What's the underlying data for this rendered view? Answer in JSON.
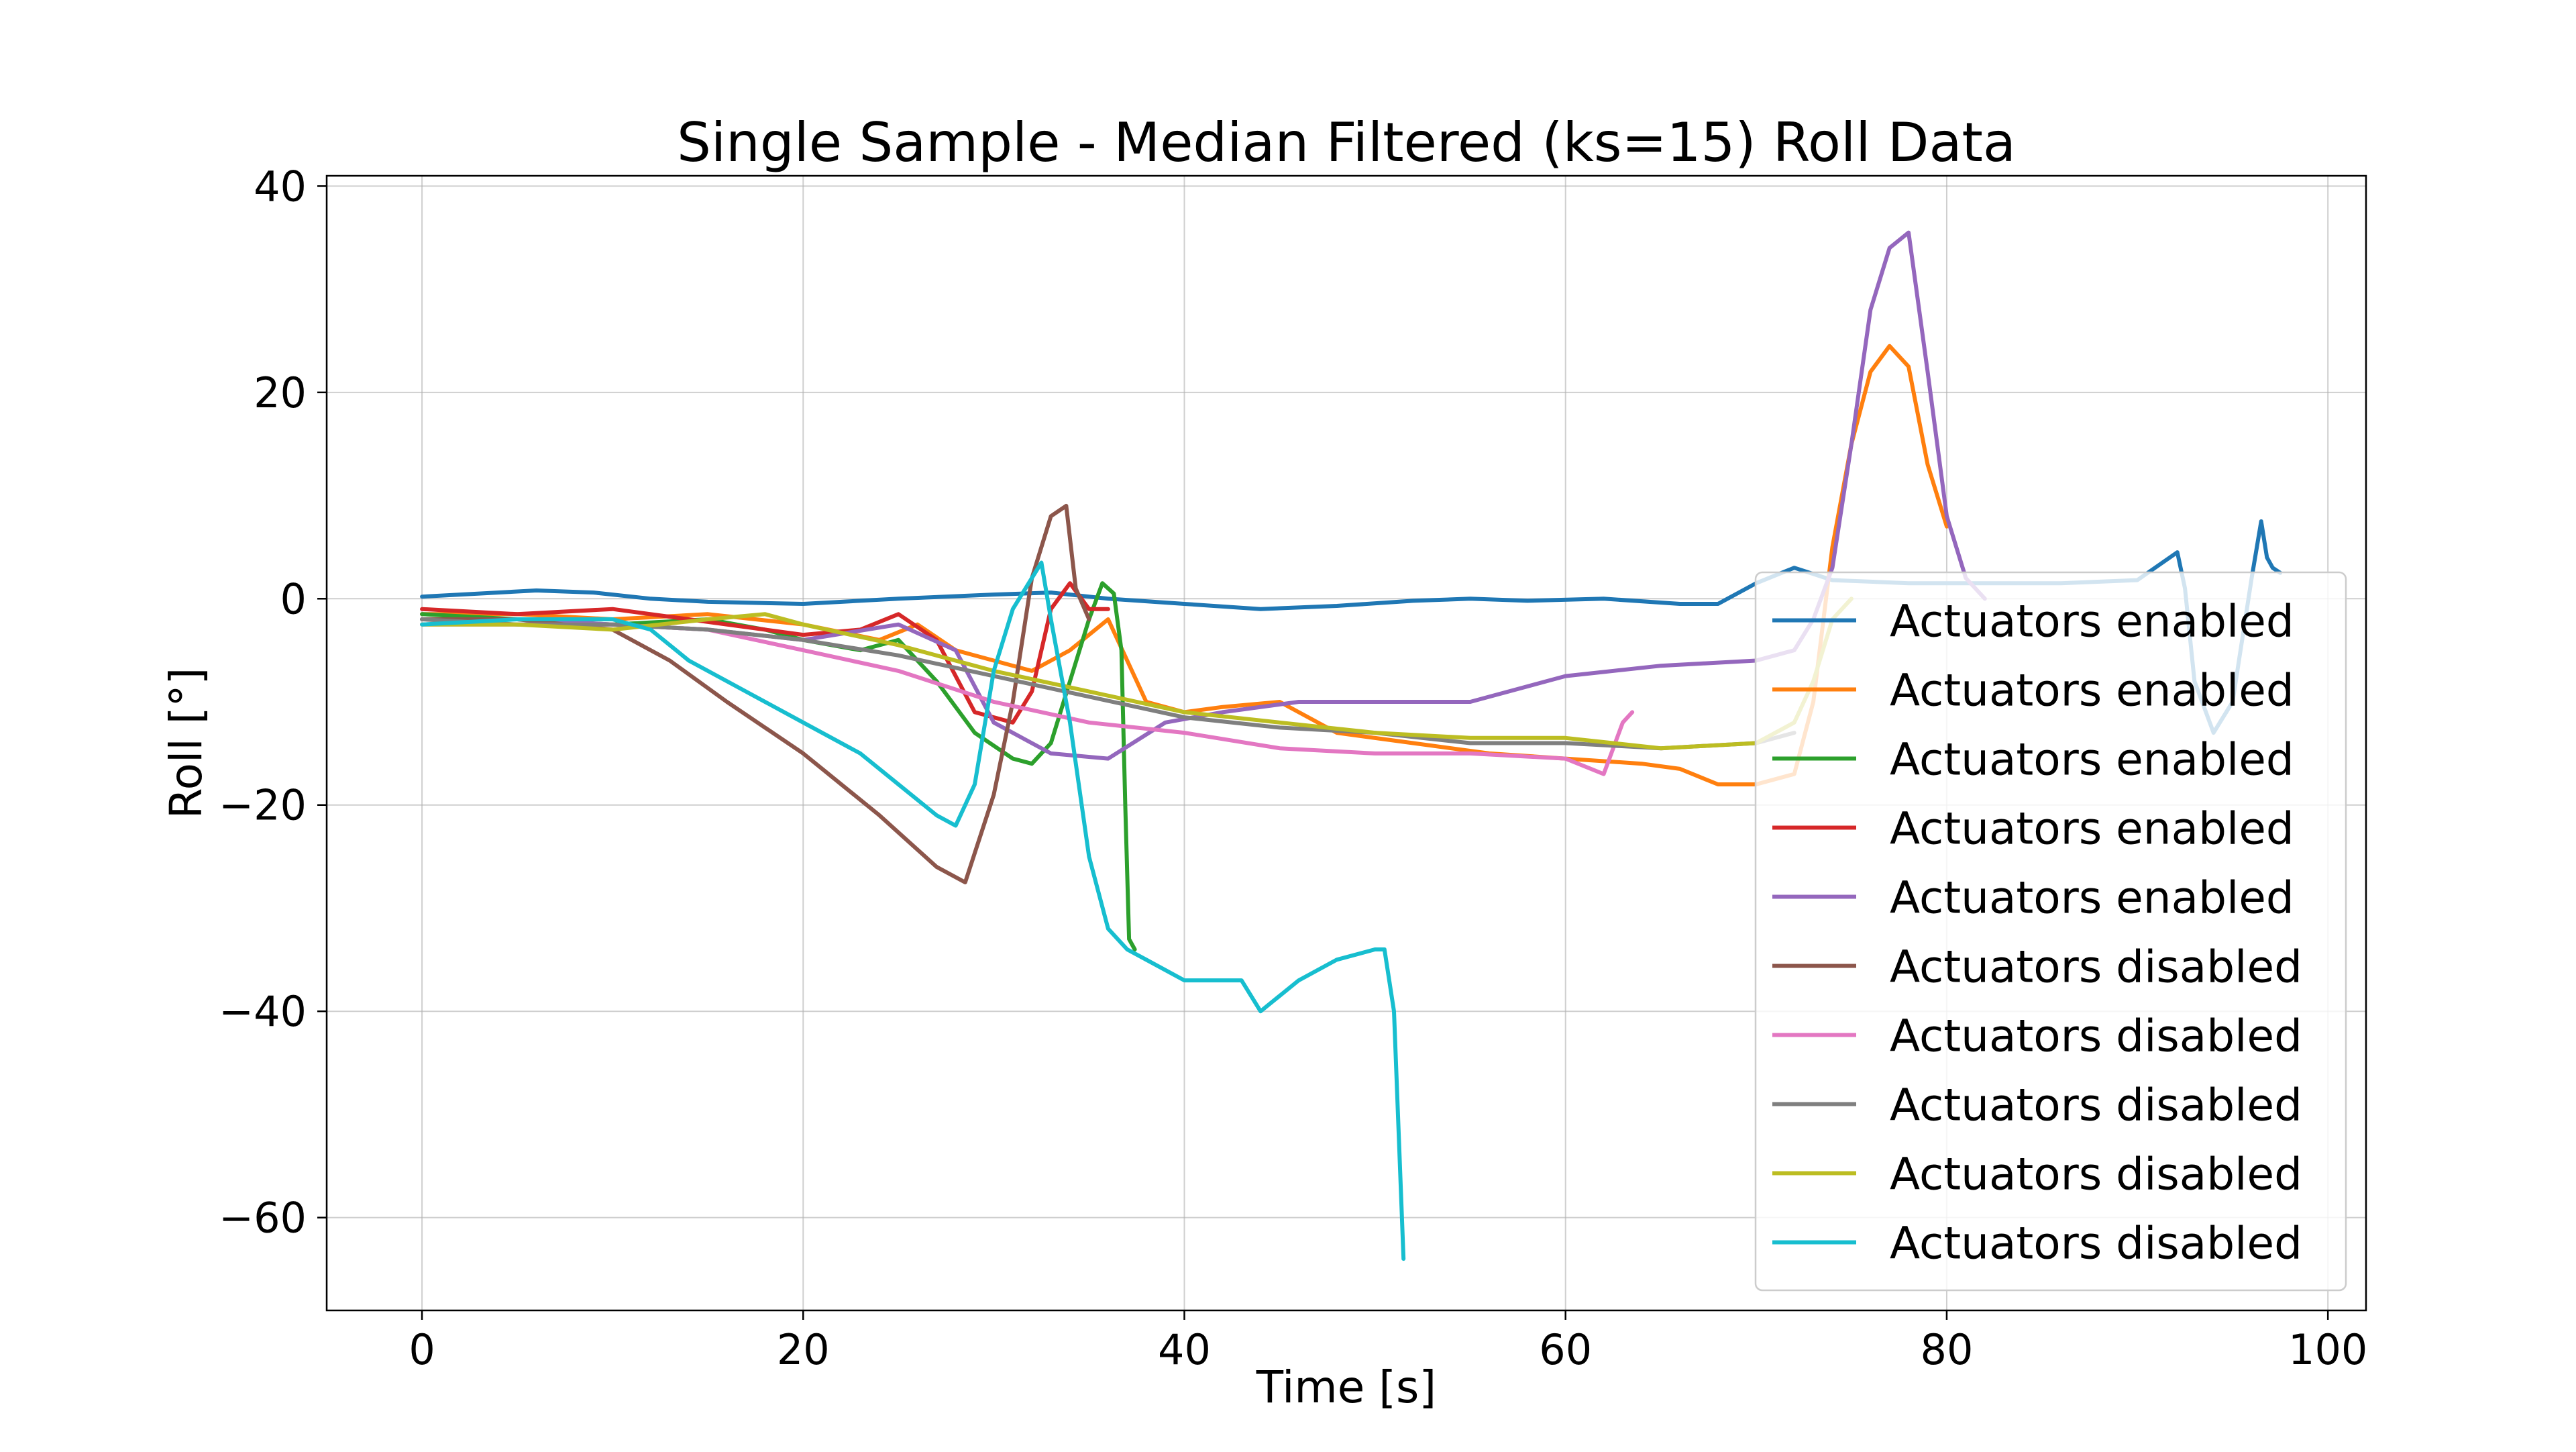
{
  "chart_data": {
    "type": "line",
    "title": "Single Sample - Median Filtered (ks=15) Roll Data",
    "xlabel": "Time [s]",
    "ylabel": "Roll [°]",
    "xlim": [
      -5,
      102
    ],
    "ylim": [
      -69,
      41
    ],
    "xticks": [
      0,
      20,
      40,
      60,
      80,
      100
    ],
    "xtick_labels": [
      "0",
      "20",
      "40",
      "60",
      "80",
      "100"
    ],
    "yticks": [
      40,
      20,
      0,
      -20,
      -40,
      -60
    ],
    "ytick_labels": [
      "40",
      "20",
      "0",
      "−20",
      "−40",
      "−60"
    ],
    "grid": true,
    "legend_position": "lower-right",
    "series": [
      {
        "name": "Actuators enabled",
        "color": "#1f77b4",
        "x": [
          0,
          3,
          6,
          9,
          12,
          15,
          20,
          25,
          30,
          33,
          36,
          40,
          44,
          48,
          52,
          55,
          58,
          62,
          66,
          68,
          70,
          72,
          74,
          78,
          82,
          86,
          90,
          92.1,
          92.5,
          93,
          94,
          95,
          96,
          96.5,
          96.8,
          97.1,
          97.5
        ],
        "y": [
          0.2,
          0.5,
          0.8,
          0.6,
          0.0,
          -0.3,
          -0.5,
          0.0,
          0.4,
          0.6,
          0.0,
          -0.5,
          -1.0,
          -0.7,
          -0.2,
          0.0,
          -0.2,
          0.0,
          -0.5,
          -0.5,
          1.5,
          3.0,
          1.8,
          1.5,
          1.5,
          1.5,
          1.8,
          4.5,
          1.0,
          -8.0,
          -13.0,
          -10.0,
          2.0,
          7.5,
          4.0,
          3.0,
          2.5
        ]
      },
      {
        "name": "Actuators enabled",
        "color": "#ff7f0e",
        "x": [
          0,
          5,
          10,
          15,
          20,
          24,
          26,
          28,
          30,
          32,
          34,
          36,
          38,
          40,
          42,
          45,
          48,
          52,
          56,
          60,
          64,
          66,
          68,
          70,
          72,
          73,
          74,
          75,
          76,
          77,
          78,
          79,
          80
        ],
        "y": [
          -1.5,
          -1.5,
          -2.0,
          -1.5,
          -2.5,
          -4.0,
          -2.5,
          -5.0,
          -6.0,
          -7.0,
          -5.0,
          -2.0,
          -10.0,
          -11.0,
          -10.5,
          -10.0,
          -13.0,
          -14.0,
          -15.0,
          -15.5,
          -16.0,
          -16.5,
          -18.0,
          -18.0,
          -17.0,
          -10.0,
          5.0,
          15.0,
          22.0,
          24.5,
          22.5,
          13.0,
          7.0
        ]
      },
      {
        "name": "Actuators enabled",
        "color": "#2ca02c",
        "x": [
          0,
          5,
          10,
          15,
          18,
          20,
          23,
          25,
          27,
          29,
          31,
          32,
          33,
          34,
          35,
          35.7,
          36.3,
          36.7,
          36.9,
          37.1,
          37.4
        ],
        "y": [
          -1.5,
          -2.0,
          -2.5,
          -2.0,
          -3.0,
          -4.0,
          -5.0,
          -4.0,
          -8.0,
          -13.0,
          -15.5,
          -16.0,
          -14.0,
          -8.0,
          -2.0,
          1.5,
          0.5,
          -5.0,
          -20.0,
          -33.0,
          -34.0
        ]
      },
      {
        "name": "Actuators enabled",
        "color": "#d62728",
        "x": [
          0,
          5,
          10,
          14,
          18,
          20,
          23,
          25,
          27,
          29,
          31,
          32,
          33,
          34,
          35,
          36
        ],
        "y": [
          -1.0,
          -1.5,
          -1.0,
          -2.0,
          -3.0,
          -3.5,
          -3.0,
          -1.5,
          -4.0,
          -11.0,
          -12.0,
          -9.0,
          -1.0,
          1.5,
          -1.0,
          -1.0
        ]
      },
      {
        "name": "Actuators enabled",
        "color": "#9467bd",
        "x": [
          0,
          5,
          10,
          15,
          20,
          25,
          28,
          30,
          33,
          36,
          39,
          42,
          46,
          50,
          55,
          60,
          65,
          70,
          72,
          73,
          74,
          75,
          76,
          77,
          78,
          79,
          80,
          81,
          82
        ],
        "y": [
          -2.0,
          -2.0,
          -2.5,
          -3.0,
          -4.0,
          -2.5,
          -5.0,
          -12.0,
          -15.0,
          -15.5,
          -12.0,
          -11.0,
          -10.0,
          -10.0,
          -10.0,
          -7.5,
          -6.5,
          -6.0,
          -5.0,
          -2.0,
          3.0,
          15.0,
          28.0,
          34.0,
          35.5,
          22.0,
          8.0,
          2.0,
          0.0
        ]
      },
      {
        "name": "Actuators disabled",
        "color": "#8c564b",
        "x": [
          0,
          5,
          10,
          13,
          16,
          20,
          24,
          27,
          28.5,
          30,
          31,
          32,
          33,
          33.8,
          34.3,
          35
        ],
        "y": [
          -2.0,
          -2.0,
          -3.0,
          -6.0,
          -10.0,
          -15.0,
          -21.0,
          -26.0,
          -27.5,
          -19.0,
          -10.0,
          2.0,
          8.0,
          9.0,
          1.0,
          -2.0
        ]
      },
      {
        "name": "Actuators disabled",
        "color": "#e377c2",
        "x": [
          0,
          5,
          10,
          15,
          20,
          25,
          30,
          35,
          40,
          45,
          50,
          55,
          60,
          62,
          63,
          63.5
        ],
        "y": [
          -2.5,
          -2.5,
          -2.5,
          -3.0,
          -5.0,
          -7.0,
          -10.0,
          -12.0,
          -13.0,
          -14.5,
          -15.0,
          -15.0,
          -15.5,
          -17.0,
          -12.0,
          -11.0
        ]
      },
      {
        "name": "Actuators disabled",
        "color": "#7f7f7f",
        "x": [
          0,
          5,
          10,
          15,
          20,
          25,
          30,
          35,
          40,
          45,
          50,
          55,
          60,
          65,
          70,
          72
        ],
        "y": [
          -2.0,
          -2.5,
          -2.5,
          -3.0,
          -4.0,
          -5.5,
          -7.5,
          -9.5,
          -11.5,
          -12.5,
          -13.0,
          -14.0,
          -14.0,
          -14.5,
          -14.0,
          -13.0
        ]
      },
      {
        "name": "Actuators disabled",
        "color": "#bcbd22",
        "x": [
          0,
          5,
          10,
          15,
          18,
          20,
          25,
          30,
          35,
          40,
          45,
          50,
          55,
          60,
          65,
          70,
          72,
          73,
          74,
          75
        ],
        "y": [
          -2.5,
          -2.5,
          -3.0,
          -2.0,
          -1.5,
          -2.5,
          -4.5,
          -7.0,
          -9.0,
          -11.0,
          -12.0,
          -13.0,
          -13.5,
          -13.5,
          -14.5,
          -14.0,
          -12.0,
          -8.0,
          -2.0,
          0.0
        ]
      },
      {
        "name": "Actuators disabled",
        "color": "#17becf",
        "x": [
          0,
          5,
          10,
          12,
          14,
          17,
          20,
          23,
          25,
          27,
          28,
          29,
          30,
          31,
          32,
          32.5,
          33,
          34,
          35,
          36,
          37,
          38,
          40,
          43,
          44,
          46,
          48,
          50,
          50.5,
          51,
          51.5
        ],
        "y": [
          -2.5,
          -2.0,
          -2.0,
          -3.0,
          -6.0,
          -9.0,
          -12.0,
          -15.0,
          -18.0,
          -21.0,
          -22.0,
          -18.0,
          -7.0,
          -1.0,
          2.0,
          3.5,
          -2.0,
          -12.0,
          -25.0,
          -32.0,
          -34.0,
          -35.0,
          -37.0,
          -37.0,
          -40.0,
          -37.0,
          -35.0,
          -34.0,
          -34.0,
          -40.0,
          -64.0
        ]
      }
    ]
  }
}
